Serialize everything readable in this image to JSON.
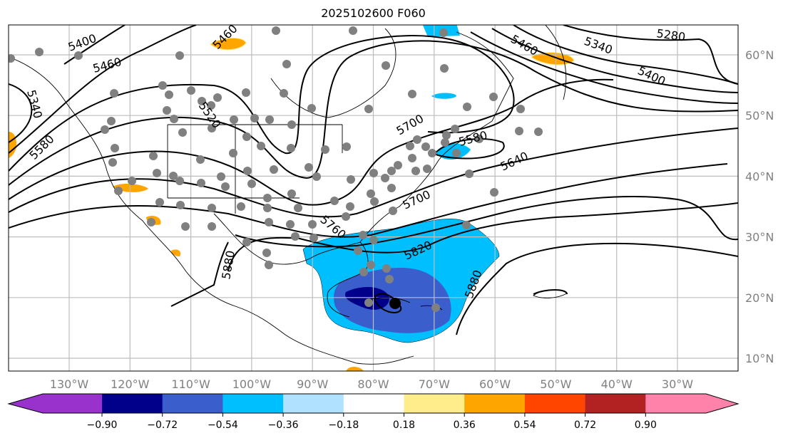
{
  "title": "2025102600 F060",
  "lon_ticks": [
    "130°W",
    "120°W",
    "110°W",
    "100°W",
    "90°W",
    "80°W",
    "70°W",
    "60°W",
    "50°W",
    "40°W",
    "30°W"
  ],
  "lat_ticks": [
    "60°N",
    "50°N",
    "40°N",
    "30°N",
    "20°N",
    "10°N"
  ],
  "contour_labels": {
    "c5400w": "5400",
    "c5460w": "5460",
    "c5340w": "5340",
    "c5580w": "5580",
    "c5520": "5520",
    "c5460n": "5460",
    "c5700n": "5700",
    "c5580e": "5580",
    "c5640": "5640",
    "c5700s": "5700",
    "c5760": "5760",
    "c5820": "5820",
    "c5880w": "5880",
    "c5880e": "5880",
    "c5460e": "5460",
    "c5340e": "5340",
    "c5280": "5280",
    "c5400e": "5400"
  },
  "colorbar": {
    "ticks": [
      "−0.90",
      "−0.72",
      "−0.54",
      "−0.36",
      "−0.18",
      "0.18",
      "0.36",
      "0.54",
      "0.72",
      "0.90"
    ],
    "colors": [
      "#9932CC",
      "#00008B",
      "#3A5FCD",
      "#00BFFF",
      "#B0E2FF",
      "#FFFFFF",
      "#FFEC8B",
      "#FFA500",
      "#FF4500",
      "#B22222",
      "#FF82AB"
    ]
  }
}
